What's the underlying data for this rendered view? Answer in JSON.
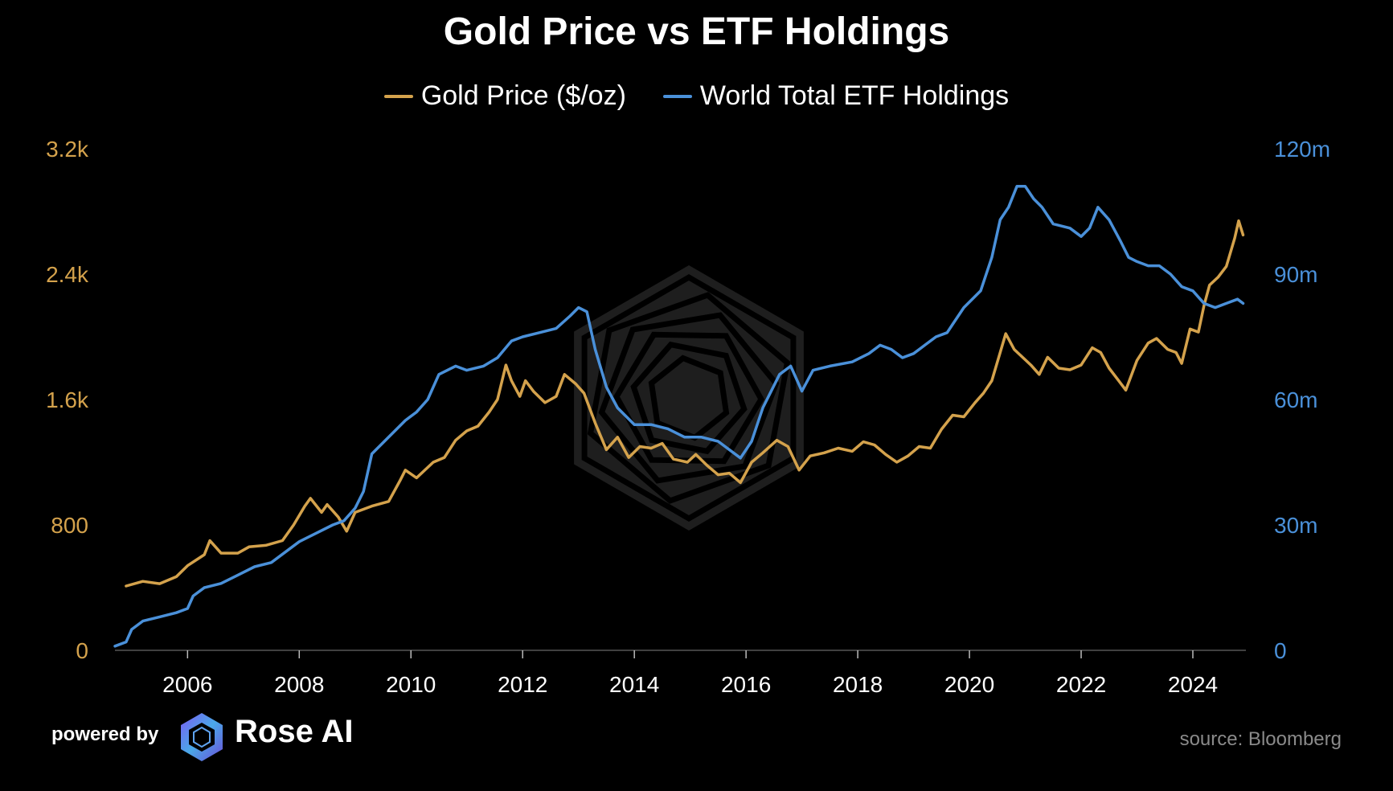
{
  "colors": {
    "background": "#000000",
    "gold": "#D4A24C",
    "etf": "#4A90D9",
    "text": "#FFFFFF",
    "source": "#8A8A8A",
    "watermark": "#1E1E1E"
  },
  "footer": {
    "powered_by": "powered by",
    "brand": "Rose AI",
    "logo_icon": "rose-ai-logo-icon",
    "source": "source: Bloomberg"
  },
  "watermark_icon": "rose-ai-watermark-icon",
  "chart_data": {
    "type": "line",
    "title": "Gold Price vs ETF Holdings",
    "legend_position": "top-center",
    "grid": false,
    "xlim": [
      2004.7,
      2024.95
    ],
    "x_ticks": [
      "2006",
      "2008",
      "2010",
      "2012",
      "2014",
      "2016",
      "2018",
      "2020",
      "2022",
      "2024"
    ],
    "y_left": {
      "ylim": [
        0,
        3200
      ],
      "ticks": [
        "0",
        "800",
        "1.6k",
        "2.4k",
        "3.2k"
      ]
    },
    "y_right": {
      "ylim": [
        0,
        120
      ],
      "ticks": [
        "0",
        "30m",
        "60m",
        "90m",
        "120m"
      ]
    },
    "series": [
      {
        "name": "Gold Price ($/oz)",
        "axis": "left",
        "points": [
          [
            2004.9,
            410
          ],
          [
            2005.2,
            440
          ],
          [
            2005.5,
            425
          ],
          [
            2005.8,
            470
          ],
          [
            2006.0,
            540
          ],
          [
            2006.3,
            610
          ],
          [
            2006.4,
            700
          ],
          [
            2006.6,
            620
          ],
          [
            2006.9,
            620
          ],
          [
            2007.1,
            660
          ],
          [
            2007.4,
            670
          ],
          [
            2007.7,
            700
          ],
          [
            2007.9,
            800
          ],
          [
            2008.1,
            920
          ],
          [
            2008.2,
            970
          ],
          [
            2008.4,
            880
          ],
          [
            2008.5,
            930
          ],
          [
            2008.7,
            850
          ],
          [
            2008.85,
            760
          ],
          [
            2009.0,
            880
          ],
          [
            2009.3,
            920
          ],
          [
            2009.6,
            950
          ],
          [
            2009.8,
            1080
          ],
          [
            2009.9,
            1150
          ],
          [
            2010.1,
            1100
          ],
          [
            2010.4,
            1200
          ],
          [
            2010.6,
            1230
          ],
          [
            2010.8,
            1340
          ],
          [
            2011.0,
            1400
          ],
          [
            2011.2,
            1430
          ],
          [
            2011.4,
            1520
          ],
          [
            2011.55,
            1600
          ],
          [
            2011.7,
            1820
          ],
          [
            2011.8,
            1720
          ],
          [
            2011.95,
            1620
          ],
          [
            2012.05,
            1720
          ],
          [
            2012.2,
            1650
          ],
          [
            2012.4,
            1580
          ],
          [
            2012.6,
            1620
          ],
          [
            2012.75,
            1760
          ],
          [
            2012.95,
            1700
          ],
          [
            2013.1,
            1640
          ],
          [
            2013.3,
            1450
          ],
          [
            2013.5,
            1280
          ],
          [
            2013.7,
            1360
          ],
          [
            2013.9,
            1230
          ],
          [
            2014.1,
            1300
          ],
          [
            2014.3,
            1290
          ],
          [
            2014.5,
            1320
          ],
          [
            2014.7,
            1220
          ],
          [
            2014.95,
            1200
          ],
          [
            2015.1,
            1250
          ],
          [
            2015.3,
            1180
          ],
          [
            2015.5,
            1120
          ],
          [
            2015.7,
            1130
          ],
          [
            2015.9,
            1070
          ],
          [
            2016.1,
            1200
          ],
          [
            2016.3,
            1260
          ],
          [
            2016.55,
            1340
          ],
          [
            2016.75,
            1300
          ],
          [
            2016.95,
            1150
          ],
          [
            2017.15,
            1240
          ],
          [
            2017.4,
            1260
          ],
          [
            2017.65,
            1290
          ],
          [
            2017.9,
            1270
          ],
          [
            2018.1,
            1330
          ],
          [
            2018.3,
            1310
          ],
          [
            2018.5,
            1250
          ],
          [
            2018.7,
            1200
          ],
          [
            2018.9,
            1240
          ],
          [
            2019.1,
            1300
          ],
          [
            2019.3,
            1290
          ],
          [
            2019.5,
            1410
          ],
          [
            2019.7,
            1500
          ],
          [
            2019.9,
            1490
          ],
          [
            2020.1,
            1580
          ],
          [
            2020.25,
            1640
          ],
          [
            2020.4,
            1720
          ],
          [
            2020.55,
            1900
          ],
          [
            2020.65,
            2020
          ],
          [
            2020.8,
            1920
          ],
          [
            2020.95,
            1870
          ],
          [
            2021.1,
            1820
          ],
          [
            2021.25,
            1760
          ],
          [
            2021.4,
            1870
          ],
          [
            2021.6,
            1800
          ],
          [
            2021.8,
            1790
          ],
          [
            2022.0,
            1820
          ],
          [
            2022.2,
            1930
          ],
          [
            2022.35,
            1900
          ],
          [
            2022.5,
            1800
          ],
          [
            2022.65,
            1730
          ],
          [
            2022.8,
            1660
          ],
          [
            2023.0,
            1850
          ],
          [
            2023.2,
            1960
          ],
          [
            2023.35,
            1990
          ],
          [
            2023.55,
            1920
          ],
          [
            2023.7,
            1900
          ],
          [
            2023.8,
            1830
          ],
          [
            2023.95,
            2050
          ],
          [
            2024.1,
            2030
          ],
          [
            2024.2,
            2200
          ],
          [
            2024.3,
            2330
          ],
          [
            2024.45,
            2380
          ],
          [
            2024.6,
            2450
          ],
          [
            2024.75,
            2630
          ],
          [
            2024.82,
            2740
          ],
          [
            2024.9,
            2650
          ]
        ]
      },
      {
        "name": "World Total ETF Holdings",
        "axis": "right",
        "points": [
          [
            2004.7,
            1
          ],
          [
            2004.9,
            2
          ],
          [
            2005.0,
            5
          ],
          [
            2005.2,
            7
          ],
          [
            2005.5,
            8
          ],
          [
            2005.8,
            9
          ],
          [
            2006.0,
            10
          ],
          [
            2006.1,
            13
          ],
          [
            2006.3,
            15
          ],
          [
            2006.6,
            16
          ],
          [
            2006.9,
            18
          ],
          [
            2007.2,
            20
          ],
          [
            2007.5,
            21
          ],
          [
            2007.8,
            24
          ],
          [
            2008.0,
            26
          ],
          [
            2008.3,
            28
          ],
          [
            2008.6,
            30
          ],
          [
            2008.8,
            31
          ],
          [
            2009.0,
            34
          ],
          [
            2009.15,
            38
          ],
          [
            2009.3,
            47
          ],
          [
            2009.6,
            51
          ],
          [
            2009.9,
            55
          ],
          [
            2010.1,
            57
          ],
          [
            2010.3,
            60
          ],
          [
            2010.5,
            66
          ],
          [
            2010.8,
            68
          ],
          [
            2011.0,
            67
          ],
          [
            2011.3,
            68
          ],
          [
            2011.55,
            70
          ],
          [
            2011.8,
            74
          ],
          [
            2012.0,
            75
          ],
          [
            2012.3,
            76
          ],
          [
            2012.6,
            77
          ],
          [
            2012.85,
            80
          ],
          [
            2013.0,
            82
          ],
          [
            2013.15,
            81
          ],
          [
            2013.3,
            72
          ],
          [
            2013.5,
            63
          ],
          [
            2013.7,
            58
          ],
          [
            2014.0,
            54
          ],
          [
            2014.3,
            54
          ],
          [
            2014.6,
            53
          ],
          [
            2014.9,
            51
          ],
          [
            2015.2,
            51
          ],
          [
            2015.5,
            50
          ],
          [
            2015.9,
            46
          ],
          [
            2016.1,
            50
          ],
          [
            2016.3,
            58
          ],
          [
            2016.6,
            66
          ],
          [
            2016.8,
            68
          ],
          [
            2017.0,
            62
          ],
          [
            2017.2,
            67
          ],
          [
            2017.5,
            68
          ],
          [
            2017.9,
            69
          ],
          [
            2018.2,
            71
          ],
          [
            2018.4,
            73
          ],
          [
            2018.6,
            72
          ],
          [
            2018.8,
            70
          ],
          [
            2019.0,
            71
          ],
          [
            2019.2,
            73
          ],
          [
            2019.4,
            75
          ],
          [
            2019.6,
            76
          ],
          [
            2019.7,
            78
          ],
          [
            2019.9,
            82
          ],
          [
            2020.2,
            86
          ],
          [
            2020.4,
            94
          ],
          [
            2020.55,
            103
          ],
          [
            2020.7,
            106
          ],
          [
            2020.85,
            111
          ],
          [
            2021.0,
            111
          ],
          [
            2021.15,
            108
          ],
          [
            2021.3,
            106
          ],
          [
            2021.5,
            102
          ],
          [
            2021.8,
            101
          ],
          [
            2022.0,
            99
          ],
          [
            2022.15,
            101
          ],
          [
            2022.3,
            106
          ],
          [
            2022.5,
            103
          ],
          [
            2022.7,
            98
          ],
          [
            2022.85,
            94
          ],
          [
            2023.0,
            93
          ],
          [
            2023.2,
            92
          ],
          [
            2023.4,
            92
          ],
          [
            2023.6,
            90
          ],
          [
            2023.8,
            87
          ],
          [
            2024.0,
            86
          ],
          [
            2024.2,
            83
          ],
          [
            2024.4,
            82
          ],
          [
            2024.6,
            83
          ],
          [
            2024.8,
            84
          ],
          [
            2024.9,
            83
          ]
        ]
      }
    ]
  }
}
